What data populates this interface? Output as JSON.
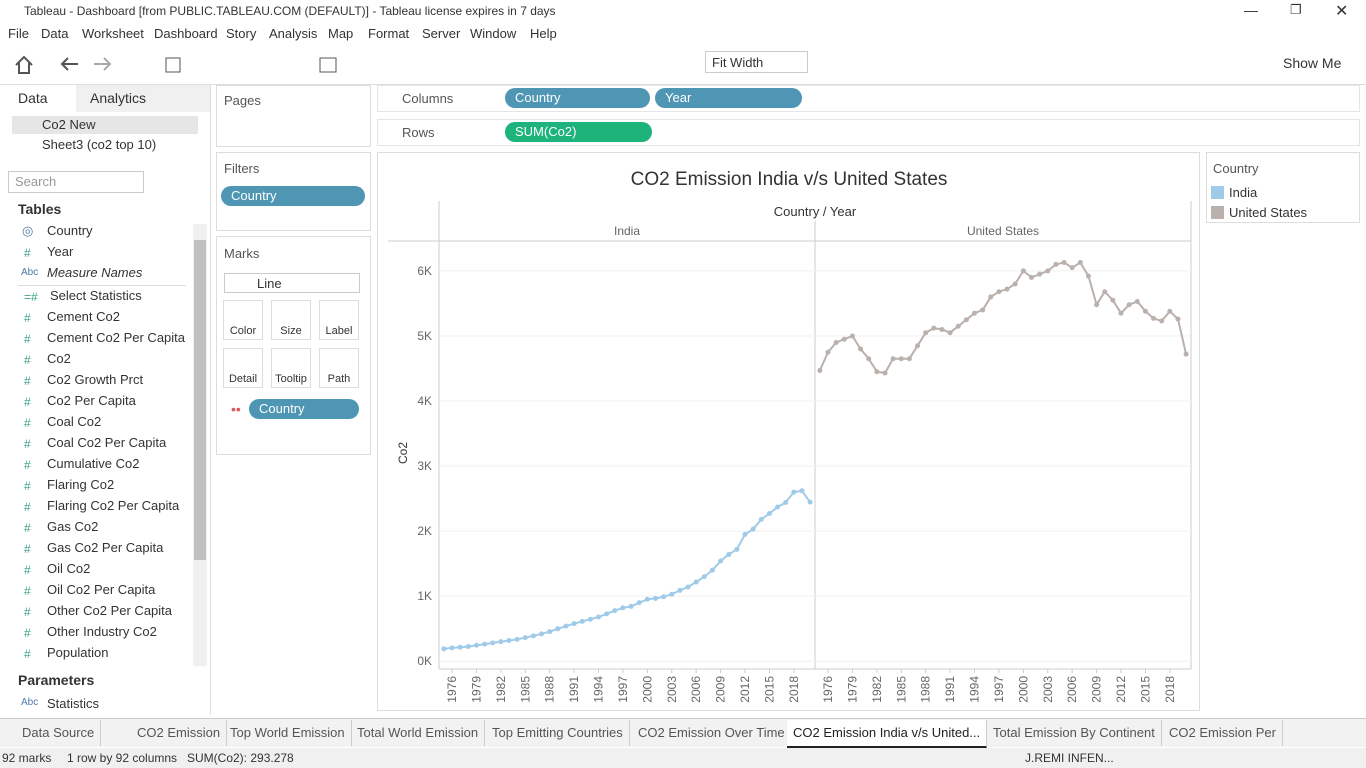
{
  "window": {
    "title": "Tableau - Dashboard [from PUBLIC.TABLEAU.COM (DEFAULT)] - Tableau license expires in 7 days"
  },
  "menu": [
    "File",
    "Data",
    "Worksheet",
    "Dashboard",
    "Story",
    "Analysis",
    "Map",
    "Format",
    "Server",
    "Window",
    "Help"
  ],
  "toolbar": {
    "fit": "Fit Width",
    "show_me": "Show Me"
  },
  "data_pane": {
    "tabs": [
      "Data",
      "Analytics"
    ],
    "sources": [
      "Co2 New",
      "Sheet3 (co2 top 10)"
    ],
    "search": "Search",
    "tables": "Tables",
    "fields": [
      {
        "name": "Country"
      },
      {
        "icon": "#",
        "name": "Year"
      },
      {
        "icon": "Abc",
        "name": "Measure Names"
      },
      {
        "icon": "=#",
        "name": "Select Statistics"
      },
      {
        "icon": "#",
        "name": "Cement Co2"
      },
      {
        "icon": "#",
        "name": "Cement Co2 Per Capita"
      },
      {
        "icon": "#",
        "name": "Co2"
      },
      {
        "icon": "#",
        "name": "Co2 Growth Prct"
      },
      {
        "icon": "#",
        "name": "Co2 Per Capita"
      },
      {
        "icon": "#",
        "name": "Coal Co2"
      },
      {
        "icon": "#",
        "name": "Coal Co2 Per Capita"
      },
      {
        "icon": "#",
        "name": "Cumulative Co2"
      },
      {
        "icon": "#",
        "name": "Flaring Co2"
      },
      {
        "icon": "#",
        "name": "Flaring Co2 Per Capita"
      },
      {
        "icon": "#",
        "name": "Gas Co2"
      },
      {
        "icon": "#",
        "name": "Gas Co2 Per Capita"
      },
      {
        "icon": "#",
        "name": "Oil Co2"
      },
      {
        "icon": "#",
        "name": "Oil Co2 Per Capita"
      },
      {
        "icon": "#",
        "name": "Other Co2 Per Capita"
      },
      {
        "icon": "#",
        "name": "Other Industry Co2"
      },
      {
        "icon": "#",
        "name": "Population"
      }
    ],
    "parameters": "Parameters",
    "parameter_list": [
      {
        "icon": "Abc",
        "name": "Statistics"
      }
    ]
  },
  "cards": {
    "pages": "Pages",
    "filters": "Filters",
    "filter_pill": "Country",
    "marks": "Marks",
    "mark_type": "Line",
    "mark_buttons": [
      "Color",
      "Size",
      "Label",
      "Detail",
      "Tooltip",
      "Path"
    ],
    "marks_pill": "Country"
  },
  "shelves": {
    "columns": "Columns",
    "column_pills": [
      "Country",
      "Year"
    ],
    "rows": "Rows",
    "row_pills": [
      "SUM(Co2)"
    ]
  },
  "sheet_tabs": [
    "Data Source",
    "CO2 Emission",
    "Top World Emission",
    "Total World Emission",
    "Top Emitting Countries",
    "CO2 Emission Over Time",
    "CO2 Emission India v/s United...",
    "Total Emission By Continent",
    "CO2 Emission Per"
  ],
  "status": {
    "items": [
      "92 marks",
      "1 row by 92 columns",
      "SUM(Co2): 293.278"
    ],
    "user": "J.REMI INFEN..."
  },
  "chart_data": {
    "type": "line",
    "title": "CO2 Emission India v/s United States",
    "header": "Country / Year",
    "y_label": "Co2",
    "legend_title": "Country",
    "x": [
      1975,
      1976,
      1977,
      1978,
      1979,
      1980,
      1981,
      1982,
      1983,
      1984,
      1985,
      1986,
      1987,
      1988,
      1989,
      1990,
      1991,
      1992,
      1993,
      1994,
      1995,
      1996,
      1997,
      1998,
      1999,
      2000,
      2001,
      2002,
      2003,
      2004,
      2005,
      2006,
      2007,
      2008,
      2009,
      2010,
      2011,
      2012,
      2013,
      2014,
      2015,
      2016,
      2017,
      2018,
      2019,
      2020
    ],
    "xlim": [
      1974.4,
      2020.6
    ],
    "xticks": [
      1976,
      1979,
      1982,
      1985,
      1988,
      1991,
      1994,
      1997,
      2000,
      2003,
      2006,
      2009,
      2012,
      2015,
      2018
    ],
    "ylim": [
      -120,
      6460
    ],
    "yticks": [
      {
        "value": 0,
        "label": "0K"
      },
      {
        "value": 1000,
        "label": "1K"
      },
      {
        "value": 2000,
        "label": "2K"
      },
      {
        "value": 3000,
        "label": "3K"
      },
      {
        "value": 4000,
        "label": "4K"
      },
      {
        "value": 5000,
        "label": "5K"
      },
      {
        "value": 6000,
        "label": "6K"
      }
    ],
    "grid": true,
    "series": [
      {
        "name": "India",
        "color": "#a0cbe8",
        "values": [
          190,
          205,
          215,
          225,
          245,
          262,
          282,
          300,
          318,
          335,
          362,
          390,
          420,
          455,
          498,
          540,
          578,
          612,
          645,
          680,
          728,
          778,
          820,
          842,
          900,
          952,
          965,
          990,
          1030,
          1088,
          1140,
          1218,
          1300,
          1400,
          1540,
          1640,
          1720,
          1950,
          2030,
          2180,
          2270,
          2370,
          2440,
          2600,
          2620,
          2445
        ]
      },
      {
        "name": "United States",
        "color": "#bab0ac",
        "values": [
          4470,
          4750,
          4900,
          4950,
          5000,
          4800,
          4650,
          4450,
          4430,
          4650,
          4650,
          4650,
          4850,
          5050,
          5120,
          5100,
          5050,
          5150,
          5250,
          5350,
          5400,
          5600,
          5680,
          5720,
          5800,
          6000,
          5900,
          5950,
          6000,
          6100,
          6130,
          6050,
          6130,
          5920,
          5480,
          5680,
          5550,
          5350,
          5480,
          5530,
          5380,
          5270,
          5230,
          5380,
          5260,
          4720
        ]
      }
    ]
  }
}
